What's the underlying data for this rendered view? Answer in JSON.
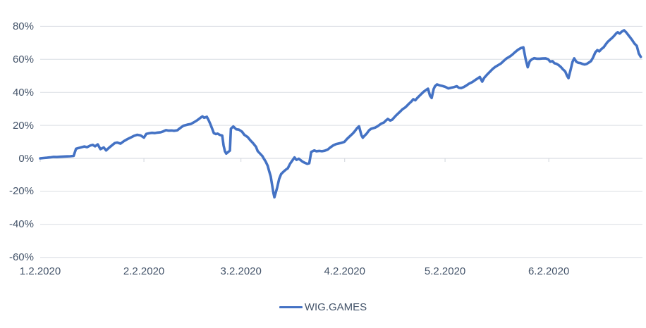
{
  "chart_data": {
    "type": "line",
    "title": "",
    "grid": true,
    "legend_position": "bottom-center",
    "colors": {
      "line": "#4472C4",
      "grid": "#D9DDE3",
      "axis": "#D0D5DC",
      "text": "#44546A",
      "background": "#FFFFFF"
    },
    "y_axis": {
      "unit": "%",
      "min": -60,
      "max": 80,
      "step": 20,
      "tick_labels_top_to_bottom": [
        "80%",
        "60%",
        "40%",
        "20%",
        "0%",
        "-20%",
        "-40%",
        "-60%"
      ]
    },
    "x_axis": {
      "range_days": [
        0,
        180
      ],
      "ticks": [
        {
          "day": 0,
          "label": "1.2.2020"
        },
        {
          "day": 31,
          "label": "2.2.2020"
        },
        {
          "day": 60,
          "label": "3.2.2020"
        },
        {
          "day": 91,
          "label": "4.2.2020"
        },
        {
          "day": 121,
          "label": "5.2.2020"
        },
        {
          "day": 152,
          "label": "6.2.2020"
        }
      ]
    },
    "series": [
      {
        "name": "WIG.GAMES",
        "color": "#4472C4",
        "points": [
          [
            0,
            0
          ],
          [
            1,
            0.2
          ],
          [
            2,
            0.4
          ],
          [
            3,
            0.6
          ],
          [
            4,
            0.9
          ],
          [
            5,
            0.8
          ],
          [
            6,
            1.0
          ],
          [
            7,
            1.1
          ],
          [
            8,
            1.2
          ],
          [
            9,
            1.3
          ],
          [
            10,
            1.5
          ],
          [
            10.7,
            5.8
          ],
          [
            11.5,
            6.3
          ],
          [
            12.4,
            6.8
          ],
          [
            13.2,
            7.2
          ],
          [
            14,
            6.8
          ],
          [
            15,
            7.8
          ],
          [
            15.7,
            8.2
          ],
          [
            16.4,
            7.3
          ],
          [
            17.2,
            8.5
          ],
          [
            18,
            5.6
          ],
          [
            19,
            6.6
          ],
          [
            19.7,
            4.8
          ],
          [
            20.6,
            6.5
          ],
          [
            21.4,
            7.8
          ],
          [
            22.3,
            9.3
          ],
          [
            23,
            9.6
          ],
          [
            24,
            8.9
          ],
          [
            25,
            10.4
          ],
          [
            26,
            11.6
          ],
          [
            27,
            12.6
          ],
          [
            28,
            13.6
          ],
          [
            29,
            14.3
          ],
          [
            30,
            13.9
          ],
          [
            31,
            12.6
          ],
          [
            31.7,
            14.8
          ],
          [
            32.5,
            15.2
          ],
          [
            33.4,
            15.5
          ],
          [
            34.2,
            15.3
          ],
          [
            35,
            15.6
          ],
          [
            36,
            15.8
          ],
          [
            36.7,
            16.3
          ],
          [
            37.6,
            17.1
          ],
          [
            38.4,
            16.8
          ],
          [
            39.3,
            16.9
          ],
          [
            40,
            16.7
          ],
          [
            41,
            17.0
          ],
          [
            41.8,
            18.3
          ],
          [
            42.8,
            19.8
          ],
          [
            43.9,
            20.4
          ],
          [
            45,
            20.8
          ],
          [
            46,
            21.9
          ],
          [
            47,
            23.2
          ],
          [
            47.9,
            24.6
          ],
          [
            48.5,
            25.4
          ],
          [
            49,
            24.6
          ],
          [
            49.8,
            25.2
          ],
          [
            50.4,
            22.9
          ],
          [
            51,
            20.0
          ],
          [
            51.4,
            17.9
          ],
          [
            51.9,
            15.3
          ],
          [
            52.5,
            14.7
          ],
          [
            53,
            15.0
          ],
          [
            53.7,
            14.2
          ],
          [
            54.4,
            13.8
          ],
          [
            54.8,
            7.9
          ],
          [
            55.2,
            4.3
          ],
          [
            55.6,
            2.9
          ],
          [
            56,
            3.6
          ],
          [
            56.7,
            4.7
          ],
          [
            57,
            18.0
          ],
          [
            57.7,
            19.3
          ],
          [
            58.6,
            17.6
          ],
          [
            59.4,
            17.4
          ],
          [
            60.3,
            16.2
          ],
          [
            61,
            14.3
          ],
          [
            62,
            12.9
          ],
          [
            62.8,
            10.9
          ],
          [
            63.6,
            9.3
          ],
          [
            64.5,
            7.0
          ],
          [
            65,
            4.4
          ],
          [
            65.7,
            2.9
          ],
          [
            66.4,
            1.4
          ],
          [
            66.8,
            0.0
          ],
          [
            67.4,
            -2.0
          ],
          [
            68,
            -4.5
          ],
          [
            68.4,
            -7.5
          ],
          [
            68.9,
            -11.0
          ],
          [
            69.3,
            -16.0
          ],
          [
            69.7,
            -21.0
          ],
          [
            70,
            -23.6
          ],
          [
            70.8,
            -17.9
          ],
          [
            71.4,
            -12.5
          ],
          [
            72,
            -9.5
          ],
          [
            72.7,
            -8.1
          ],
          [
            73.5,
            -6.7
          ],
          [
            74,
            -6.0
          ],
          [
            74.7,
            -3.2
          ],
          [
            75.4,
            -1.2
          ],
          [
            76,
            0.6
          ],
          [
            76.6,
            -0.9
          ],
          [
            77.3,
            -0.2
          ],
          [
            77.9,
            -1.2
          ],
          [
            78.5,
            -2.1
          ],
          [
            79,
            -2.6
          ],
          [
            79.8,
            -3.3
          ],
          [
            80.4,
            -3.0
          ],
          [
            81,
            3.9
          ],
          [
            81.9,
            4.8
          ],
          [
            82.5,
            4.3
          ],
          [
            83.4,
            4.5
          ],
          [
            84.2,
            4.3
          ],
          [
            85,
            4.6
          ],
          [
            85.9,
            5.3
          ],
          [
            86.7,
            6.6
          ],
          [
            87.6,
            7.9
          ],
          [
            88.4,
            8.6
          ],
          [
            89.2,
            9.0
          ],
          [
            90,
            9.4
          ],
          [
            90.9,
            10.0
          ],
          [
            91.7,
            11.8
          ],
          [
            92.6,
            13.5
          ],
          [
            93.4,
            15.0
          ],
          [
            94,
            16.4
          ],
          [
            94.7,
            18.3
          ],
          [
            95.3,
            19.4
          ],
          [
            96,
            14.0
          ],
          [
            96.4,
            12.5
          ],
          [
            97,
            13.8
          ],
          [
            97.6,
            15.1
          ],
          [
            98.3,
            17.0
          ],
          [
            98.9,
            17.9
          ],
          [
            99.5,
            18.3
          ],
          [
            100.2,
            18.7
          ],
          [
            100.8,
            19.4
          ],
          [
            101.4,
            20.3
          ],
          [
            102,
            21.1
          ],
          [
            102.7,
            21.7
          ],
          [
            103.3,
            22.9
          ],
          [
            103.9,
            23.9
          ],
          [
            104.6,
            22.9
          ],
          [
            105.2,
            23.4
          ],
          [
            105.8,
            24.8
          ],
          [
            106.4,
            26.1
          ],
          [
            107.1,
            27.4
          ],
          [
            107.7,
            28.6
          ],
          [
            108.3,
            29.8
          ],
          [
            109,
            30.7
          ],
          [
            109.6,
            31.8
          ],
          [
            110.2,
            33.1
          ],
          [
            110.9,
            34.4
          ],
          [
            111.5,
            35.8
          ],
          [
            112.1,
            35.2
          ],
          [
            112.7,
            36.6
          ],
          [
            113.4,
            38.0
          ],
          [
            114,
            39.2
          ],
          [
            114.6,
            40.4
          ],
          [
            115.3,
            41.4
          ],
          [
            115.9,
            42.2
          ],
          [
            116.5,
            38.0
          ],
          [
            117,
            36.6
          ],
          [
            117.6,
            42.0
          ],
          [
            118,
            43.7
          ],
          [
            118.6,
            44.8
          ],
          [
            119.5,
            44.2
          ],
          [
            120.3,
            43.8
          ],
          [
            121.1,
            43.3
          ],
          [
            122,
            42.4
          ],
          [
            122.8,
            42.8
          ],
          [
            123.7,
            43.2
          ],
          [
            124.5,
            43.7
          ],
          [
            125.1,
            42.8
          ],
          [
            125.8,
            42.6
          ],
          [
            126.6,
            43.2
          ],
          [
            127.4,
            44.2
          ],
          [
            128.3,
            45.4
          ],
          [
            129.1,
            46.2
          ],
          [
            130,
            47.4
          ],
          [
            131.4,
            49.3
          ],
          [
            132.1,
            46.5
          ],
          [
            132.7,
            48.8
          ],
          [
            133.5,
            50.6
          ],
          [
            134.4,
            52.5
          ],
          [
            135.2,
            54.1
          ],
          [
            136,
            55.4
          ],
          [
            136.9,
            56.5
          ],
          [
            137.7,
            57.5
          ],
          [
            138.6,
            59.2
          ],
          [
            139.4,
            60.6
          ],
          [
            140.3,
            61.6
          ],
          [
            141.1,
            62.8
          ],
          [
            141.9,
            64.3
          ],
          [
            142.8,
            65.8
          ],
          [
            143.6,
            66.8
          ],
          [
            144.4,
            67.3
          ],
          [
            145.1,
            60.0
          ],
          [
            145.7,
            55.2
          ],
          [
            146.3,
            58.8
          ],
          [
            147,
            60.1
          ],
          [
            147.6,
            60.7
          ],
          [
            148.4,
            60.4
          ],
          [
            149.3,
            60.4
          ],
          [
            150.1,
            60.5
          ],
          [
            151,
            60.6
          ],
          [
            151.8,
            60.1
          ],
          [
            152.4,
            58.6
          ],
          [
            153.1,
            58.9
          ],
          [
            153.7,
            57.6
          ],
          [
            154.3,
            57.3
          ],
          [
            155,
            56.4
          ],
          [
            155.6,
            55.4
          ],
          [
            156.2,
            54.0
          ],
          [
            156.9,
            52.7
          ],
          [
            157.5,
            49.8
          ],
          [
            157.9,
            48.6
          ],
          [
            158.5,
            53.5
          ],
          [
            159.1,
            58.5
          ],
          [
            159.6,
            60.6
          ],
          [
            160.2,
            58.6
          ],
          [
            160.8,
            57.9
          ],
          [
            161.5,
            57.7
          ],
          [
            162.1,
            57.2
          ],
          [
            162.7,
            56.9
          ],
          [
            163.3,
            57.2
          ],
          [
            164,
            58.1
          ],
          [
            164.6,
            58.9
          ],
          [
            165.2,
            61.0
          ],
          [
            165.9,
            64.2
          ],
          [
            166.5,
            65.6
          ],
          [
            167.1,
            64.8
          ],
          [
            167.7,
            66.2
          ],
          [
            168.4,
            67.3
          ],
          [
            169,
            69.0
          ],
          [
            169.6,
            70.6
          ],
          [
            170.3,
            71.9
          ],
          [
            170.9,
            72.9
          ],
          [
            171.5,
            74.2
          ],
          [
            172.2,
            75.8
          ],
          [
            172.6,
            76.4
          ],
          [
            173.2,
            75.6
          ],
          [
            173.8,
            76.8
          ],
          [
            174.5,
            77.6
          ],
          [
            175.1,
            76.4
          ],
          [
            175.7,
            74.9
          ],
          [
            176.4,
            73.1
          ],
          [
            177,
            71.4
          ],
          [
            177.6,
            69.6
          ],
          [
            178.3,
            68.2
          ],
          [
            178.9,
            63.5
          ],
          [
            179.5,
            61.5
          ]
        ]
      }
    ]
  }
}
